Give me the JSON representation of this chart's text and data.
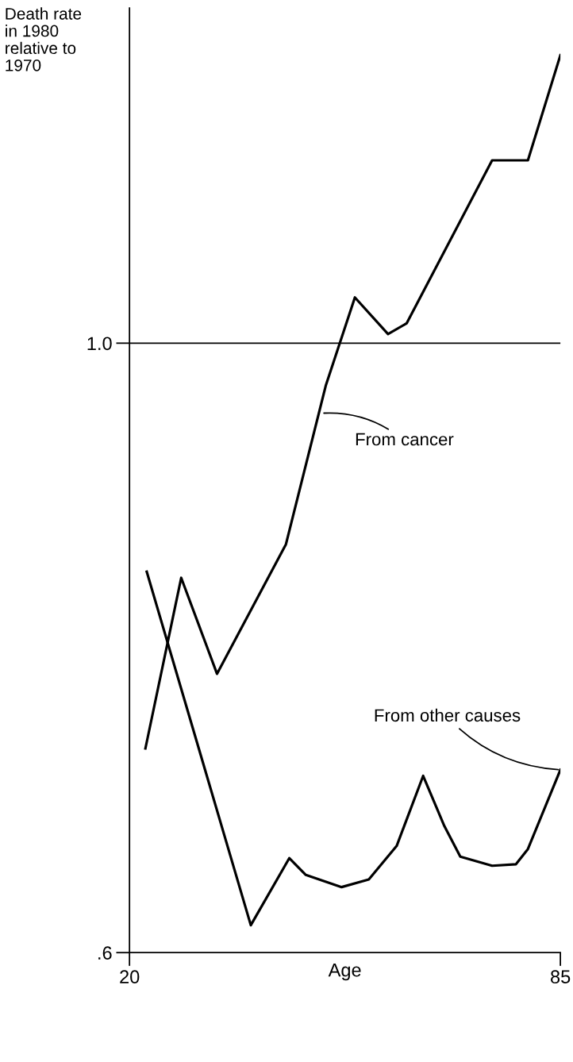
{
  "chart_data": {
    "type": "line",
    "ylabel": "Death rate\nin 1980\nrelative to\n1970",
    "xlabel": "Age",
    "series": [
      {
        "color": "#000000",
        "x": [
          22.4,
          27.8,
          33.2,
          43.6,
          49.6,
          54.0,
          59.0,
          61.8,
          74.7,
          80.1,
          85
        ],
        "values": [
          0.734,
          0.846,
          0.783,
          0.868,
          0.972,
          1.03,
          1.006,
          1.013,
          1.12,
          1.12,
          1.189
        ]
      },
      {
        "color": "#000000",
        "x": [
          22.6,
          38.3,
          44.1,
          46.6,
          52.0,
          56.1,
          60.3,
          64.3,
          67.5,
          69.9,
          74.7,
          78.3,
          80.1,
          85
        ],
        "values": [
          0.85,
          0.618,
          0.662,
          0.651,
          0.643,
          0.648,
          0.67,
          0.716,
          0.683,
          0.663,
          0.657,
          0.658,
          0.668,
          0.72
        ]
      }
    ],
    "xlim": [
      20,
      85
    ],
    "ylim": [
      0.6,
      1.22
    ],
    "xticks": [
      20,
      85
    ],
    "yticks": [
      {
        "value": 0.6,
        "label": ".6"
      },
      {
        "value": 1.0,
        "label": "1.0"
      }
    ],
    "ref_lines": [
      {
        "axis": "y",
        "value": 1.0,
        "label": null,
        "color": "#000000"
      }
    ],
    "annotations": [
      {
        "text": "From cancer",
        "x": 49.0,
        "y": 0.954
      },
      {
        "text": "From other causes",
        "x": 85,
        "y": 0.72
      }
    ],
    "grid": false,
    "legend": false,
    "marker": "none",
    "line_style": "solid"
  }
}
